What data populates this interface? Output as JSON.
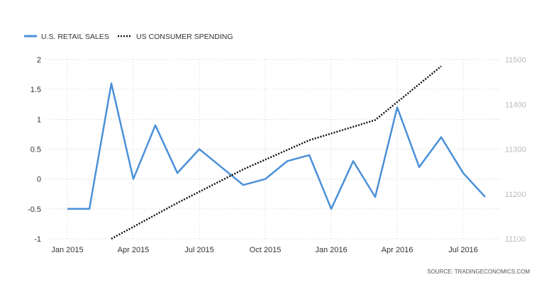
{
  "chart_data": {
    "type": "line",
    "legend_position": "top-left",
    "grid": true,
    "source": "SOURCE: TRADINGECONOMICS.COM",
    "x_ticks": [
      "Jan 2015",
      "Apr 2015",
      "Jul 2015",
      "Oct 2015",
      "Jan 2016",
      "Apr 2016",
      "Jul 2016"
    ],
    "y_left": {
      "ticks": [
        "2",
        "1.5",
        "1",
        "0.5",
        "0",
        "-0.5",
        "-1"
      ],
      "ylim": [
        -1,
        2
      ]
    },
    "y_right": {
      "ticks": [
        "11500",
        "11400",
        "11300",
        "11200",
        "11100"
      ],
      "ylim": [
        11100,
        11500
      ]
    },
    "series": [
      {
        "name": "U.S. RETAIL SALES",
        "axis": "left",
        "style": "solid",
        "color": "#4a90d9",
        "x": [
          "2015-01",
          "2015-02",
          "2015-03",
          "2015-04",
          "2015-05",
          "2015-06",
          "2015-07",
          "2015-08",
          "2015-09",
          "2015-10",
          "2015-11",
          "2015-12",
          "2016-01",
          "2016-02",
          "2016-03",
          "2016-04",
          "2016-05",
          "2016-06",
          "2016-07",
          "2016-08"
        ],
        "values": [
          -0.5,
          -0.5,
          1.6,
          0.0,
          0.9,
          0.1,
          0.5,
          0.2,
          -0.1,
          0.0,
          0.3,
          0.4,
          -0.5,
          0.3,
          -0.3,
          1.2,
          0.2,
          0.7,
          0.1,
          -0.3
        ]
      },
      {
        "name": "US CONSUMER SPENDING",
        "axis": "right",
        "style": "dotted",
        "color": "#111111",
        "x": [
          "2015-03",
          "2015-06",
          "2015-09",
          "2015-12",
          "2016-03",
          "2016-06"
        ],
        "values": [
          11100,
          11180,
          11255,
          11320,
          11365,
          11485
        ]
      }
    ]
  }
}
